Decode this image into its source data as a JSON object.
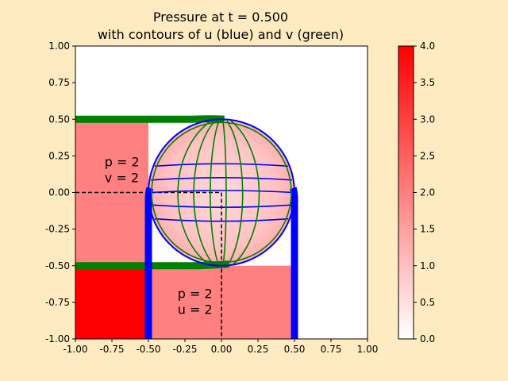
{
  "page": {
    "background": "#ffebc2"
  },
  "chart_data": {
    "type": "heatmap",
    "title": [
      "Pressure at t = 0.500",
      "with contours of u (blue) and v (green)"
    ],
    "xlabel": "",
    "ylabel": "",
    "xlim": [
      -1.0,
      1.0
    ],
    "ylim": [
      -1.0,
      1.0
    ],
    "xticks": [
      "-1.00",
      "-0.75",
      "-0.50",
      "-0.25",
      "0.00",
      "0.25",
      "0.50",
      "0.75",
      "1.00"
    ],
    "yticks": [
      "-1.00",
      "-0.75",
      "-0.50",
      "-0.25",
      "0.00",
      "0.25",
      "0.50",
      "0.75",
      "1.00"
    ],
    "grid": false,
    "colormap": {
      "low_color": "#ffffff",
      "high_color": "#ff0000"
    },
    "colorbar": {
      "range": [
        0.0,
        4.0
      ],
      "ticks": [
        "0.0",
        "0.5",
        "1.0",
        "1.5",
        "2.0",
        "2.5",
        "3.0",
        "3.5",
        "4.0"
      ]
    },
    "pressure_regions": [
      {
        "name": "upper-left",
        "x": [
          -1.0,
          -0.5
        ],
        "y": [
          -0.5,
          0.5
        ],
        "p": 2
      },
      {
        "name": "lower-left-corner",
        "x": [
          -1.0,
          -0.5
        ],
        "y": [
          -1.0,
          -0.5
        ],
        "p": 4
      },
      {
        "name": "lower-middle",
        "x": [
          -0.5,
          0.5
        ],
        "y": [
          -1.0,
          -0.5
        ],
        "p": 2
      },
      {
        "name": "circle-interior",
        "center": [
          0.0,
          0.0
        ],
        "radius": 0.5,
        "p": 1.0
      }
    ],
    "boundaries": {
      "dashed_corner_point": [
        0.0,
        0.0
      ]
    },
    "u_contour_color": "#0000ff",
    "v_contour_color": "#008000",
    "annotations": [
      {
        "lines": [
          "p = 2",
          "v = 2"
        ],
        "x": -0.8,
        "y": 0.18
      },
      {
        "lines": [
          "p = 2",
          "u = 2"
        ],
        "x": -0.3,
        "y": -0.72
      }
    ]
  }
}
